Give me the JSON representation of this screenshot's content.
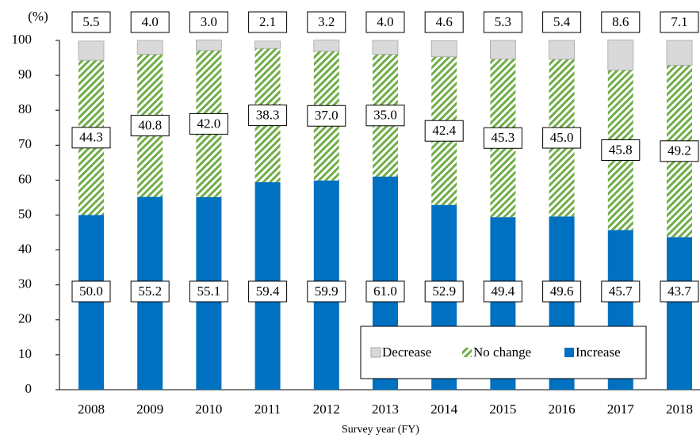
{
  "chart_data": {
    "type": "bar",
    "stacked": true,
    "ylabel": "(%)",
    "xlabel": "Survey year (FY)",
    "categories": [
      "2008",
      "2009",
      "2010",
      "2011",
      "2012",
      "2013",
      "2014",
      "2015",
      "2016",
      "2017",
      "2018"
    ],
    "series": [
      {
        "name": "Increase",
        "color": "#0070c0",
        "hatch": false,
        "values": [
          50.0,
          55.2,
          55.1,
          59.4,
          59.9,
          61.0,
          52.9,
          49.4,
          49.6,
          45.7,
          43.7
        ],
        "value_labels": [
          "50.0",
          "55.2",
          "55.1",
          "59.4",
          "59.9",
          "61.0",
          "52.9",
          "49.4",
          "49.6",
          "45.7",
          "43.7"
        ]
      },
      {
        "name": "No change",
        "color": "#70ad47",
        "hatch": true,
        "values": [
          44.3,
          40.8,
          42.0,
          38.3,
          37.0,
          35.0,
          42.4,
          45.3,
          45.0,
          45.8,
          49.2
        ],
        "value_labels": [
          "44.3",
          "40.8",
          "42.0",
          "38.3",
          "37.0",
          "35.0",
          "42.4",
          "45.3",
          "45.0",
          "45.8",
          "49.2"
        ]
      },
      {
        "name": "Decrease",
        "color": "#d9d9d9",
        "hatch": false,
        "values": [
          5.5,
          4.0,
          3.0,
          2.1,
          3.2,
          4.0,
          4.6,
          5.3,
          5.4,
          8.6,
          7.1
        ],
        "value_labels": [
          "5.5",
          "4.0",
          "3.0",
          "2.1",
          "3.2",
          "4.0",
          "4.6",
          "5.3",
          "5.4",
          "8.6",
          "7.1"
        ]
      }
    ],
    "ylim": [
      0,
      100
    ],
    "yticks": [
      0,
      10,
      20,
      30,
      40,
      50,
      60,
      70,
      80,
      90,
      100
    ],
    "grid": false,
    "legend": "lower right"
  }
}
